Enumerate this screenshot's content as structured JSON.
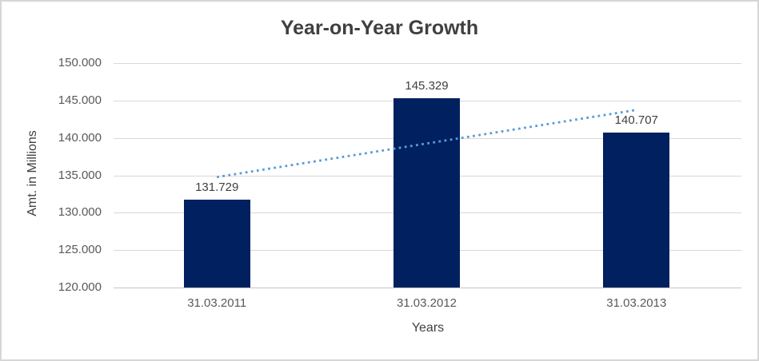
{
  "chart_data": {
    "type": "bar",
    "title": "Year-on-Year Growth",
    "xlabel": "Years",
    "ylabel": "Amt. in Millions",
    "categories": [
      "31.03.2011",
      "31.03.2012",
      "31.03.2013"
    ],
    "values": [
      131729,
      145329,
      140707
    ],
    "data_labels": [
      "131.729",
      "145.329",
      "140.707"
    ],
    "ylim": [
      120000,
      150000
    ],
    "y_ticks": {
      "values": [
        120000,
        125000,
        130000,
        135000,
        140000,
        145000,
        150000
      ],
      "labels": [
        "120.000",
        "125.000",
        "130.000",
        "135.000",
        "140.000",
        "145.000",
        "150.000"
      ]
    },
    "grid": true,
    "legend": "none",
    "bar_color": "#002060",
    "trendline": {
      "type": "linear",
      "style": "dotted",
      "color": "#5B9BD5"
    },
    "gridline_color": "#D9D9D9",
    "axis_text_color": "#595959",
    "title_color": "#404040"
  }
}
